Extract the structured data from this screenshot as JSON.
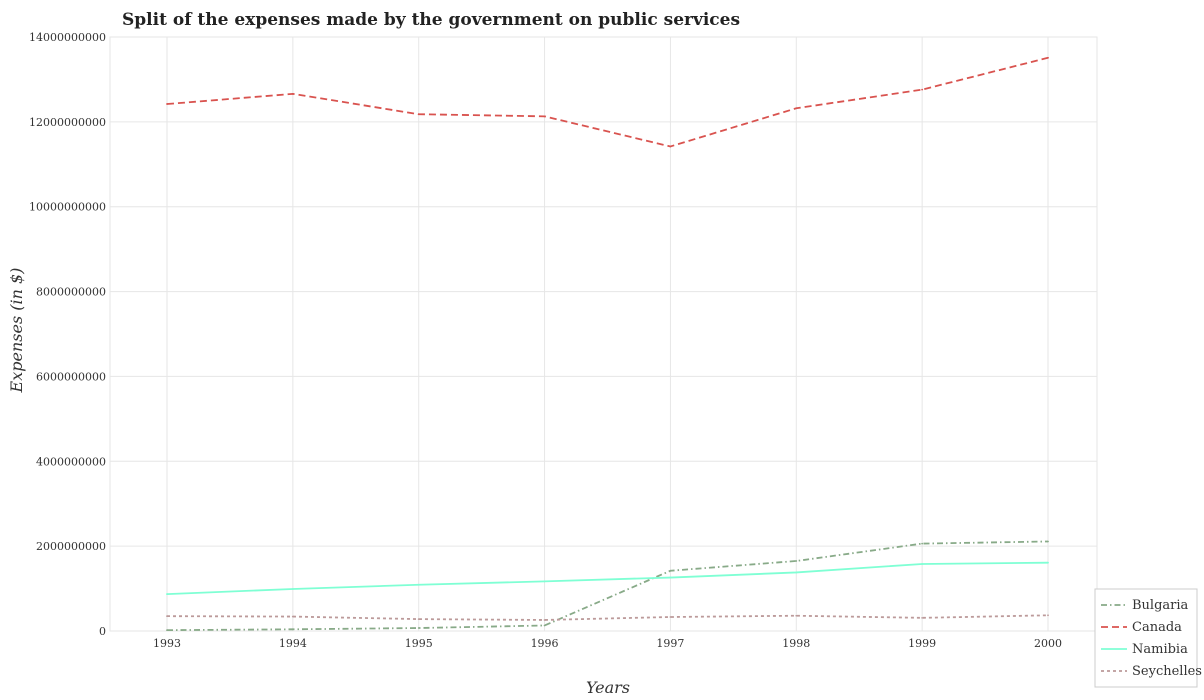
{
  "chart_data": {
    "type": "line",
    "title": "Split of the expenses made by the government on public services",
    "xlabel": "Years",
    "ylabel": "Expenses (in $)",
    "categories": [
      "1993",
      "1994",
      "1995",
      "1996",
      "1997",
      "1998",
      "1999",
      "2000"
    ],
    "ylim": [
      0,
      14000000000
    ],
    "yticks": [
      0,
      2000000000,
      4000000000,
      6000000000,
      8000000000,
      10000000000,
      12000000000,
      14000000000
    ],
    "ytick_labels": [
      "0",
      "2000000000",
      "4000000000",
      "6000000000",
      "8000000000",
      "10000000000",
      "12000000000",
      "14000000000"
    ],
    "grid": true,
    "legend_position": "bottom-right",
    "series": [
      {
        "name": "Bulgaria",
        "color": "#88aa88",
        "dash": "6,3,1.5,3",
        "values": [
          20000000,
          40000000,
          70000000,
          130000000,
          1420000000,
          1650000000,
          2060000000,
          2110000000
        ]
      },
      {
        "name": "Canada",
        "color": "#d9534f",
        "dash": "7,4",
        "values": [
          12420000000,
          12660000000,
          12180000000,
          12130000000,
          11420000000,
          12320000000,
          12760000000,
          13510000000
        ]
      },
      {
        "name": "Namibia",
        "color": "#7fffd4",
        "dash": "",
        "values": [
          870000000,
          990000000,
          1090000000,
          1170000000,
          1260000000,
          1380000000,
          1580000000,
          1610000000
        ]
      },
      {
        "name": "Seychelles",
        "color": "#bc9a9a",
        "dash": "3,3",
        "values": [
          350000000,
          340000000,
          280000000,
          260000000,
          330000000,
          360000000,
          310000000,
          370000000
        ]
      }
    ]
  }
}
